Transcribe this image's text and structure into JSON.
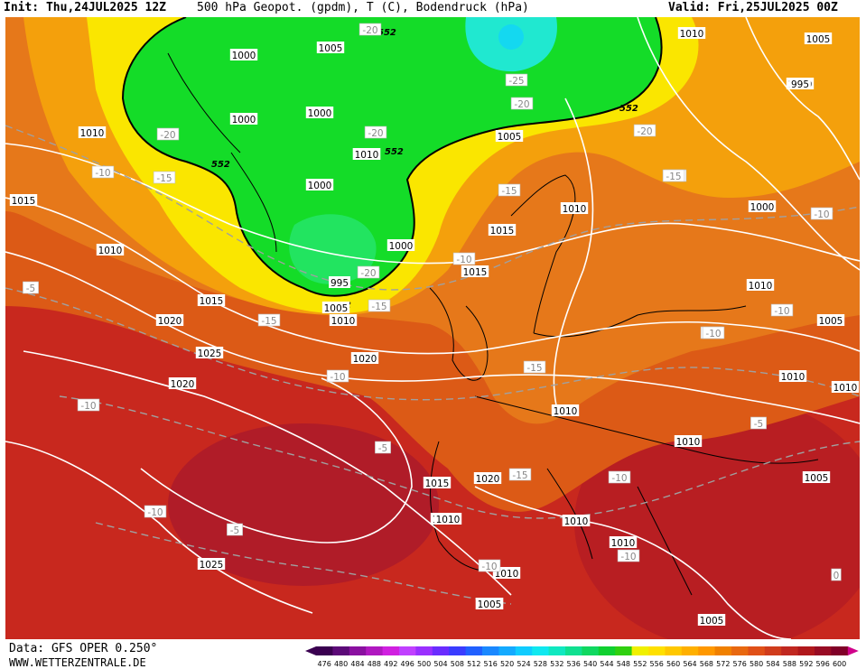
{
  "header": {
    "init": "Init: Thu,24JUL2025 12Z",
    "title": "500 hPa Geopot. (gpdm), T (C), Bodendruck (hPa)",
    "valid": "Valid: Fri,25JUL2025 00Z"
  },
  "footer": {
    "source": "Data: GFS OPER 0.250°",
    "site": "WWW.WETTERZENTRALE.DE"
  },
  "legend": {
    "ticks": [
      "476",
      "480",
      "484",
      "488",
      "492",
      "496",
      "500",
      "504",
      "508",
      "512",
      "516",
      "520",
      "524",
      "528",
      "532",
      "536",
      "540",
      "544",
      "548",
      "552",
      "556",
      "560",
      "564",
      "568",
      "572",
      "576",
      "580",
      "584",
      "588",
      "592",
      "596",
      "600"
    ],
    "colors": [
      "#3a0050",
      "#5c0a78",
      "#8a10a0",
      "#b018c0",
      "#d020e0",
      "#c040ff",
      "#9a30ff",
      "#6a2cff",
      "#3a3cff",
      "#2060ff",
      "#1a88ff",
      "#14aaff",
      "#10ccff",
      "#10e8f0",
      "#10e8c0",
      "#10e090",
      "#10d860",
      "#10d030",
      "#30d010",
      "#f0f000",
      "#ffe000",
      "#ffc800",
      "#ffb000",
      "#ff9800",
      "#f08000",
      "#e86810",
      "#e05018",
      "#d03c1c",
      "#c02820",
      "#b0181c",
      "#980c24",
      "#800028"
    ]
  },
  "map": {
    "colors": {
      "ocean_warm": "#c8281e",
      "hot": "#b01c28",
      "orange": "#e6781a",
      "deep_orange": "#dc5a16",
      "yellow_orange": "#f4b40a",
      "yellow": "#fafa00",
      "green": "#14dc28",
      "cyan": "#20e8d0"
    },
    "geopot_labels": [
      "552",
      "552",
      "552",
      "552",
      "552"
    ],
    "isobar_labels": [
      "1005",
      "1000",
      "1000",
      "1000",
      "1000",
      "1010",
      "1010",
      "1000",
      "1000",
      "995",
      "1005",
      "1010",
      "1005",
      "1000",
      "1005",
      "995",
      "1000",
      "1015",
      "1010",
      "1010",
      "1015",
      "1020",
      "1015",
      "1010",
      "1010",
      "1010",
      "1005",
      "1020",
      "1025",
      "1020",
      "1015",
      "1010",
      "1015",
      "1010",
      "1010",
      "1005",
      "1010",
      "1005",
      "1010",
      "1005",
      "1020",
      "1025",
      "1010",
      "1010",
      "1010",
      "1010",
      "1005"
    ],
    "temp_labels": [
      "-20",
      "-20",
      "-25",
      "-20",
      "-20",
      "-20",
      "-15",
      "-15",
      "-15",
      "-10",
      "-15",
      "-20",
      "-15",
      "-10",
      "-5",
      "-15",
      "-10",
      "-10",
      "-10",
      "-5",
      "-15",
      "-10",
      "-5",
      "-10",
      "-10",
      "-10",
      "-10",
      "-10",
      "-5",
      "0",
      "-15",
      "-10"
    ]
  }
}
